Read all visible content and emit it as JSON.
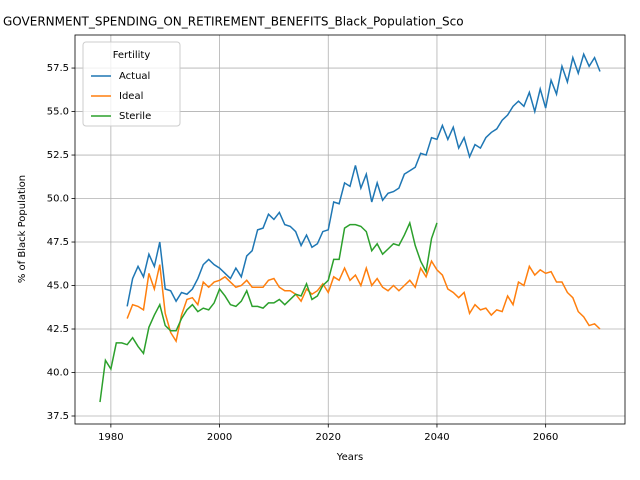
{
  "chart_data": {
    "type": "line",
    "title": "GOVERNMENT_SPENDING_ON_RETIREMENT_BENEFITS_Black_Population_Sco",
    "xlabel": "Years",
    "ylabel": "% of Black Population",
    "legend_title": "Fertility",
    "legend_loc": "upper left",
    "grid": true,
    "xlim": [
      1973.4,
      2074.6
    ],
    "ylim": [
      37.04,
      59.4
    ],
    "xticks": [
      1980,
      2000,
      2020,
      2040,
      2060
    ],
    "yticks": [
      37.5,
      {
        "value": 40,
        "label": "40.0"
      },
      42.5,
      {
        "value": 45,
        "label": "45.0"
      },
      47.5,
      {
        "value": 50,
        "label": "50.0"
      },
      52.5,
      {
        "value": 55,
        "label": "55.0"
      },
      57.5
    ],
    "x": [
      1978,
      1979,
      1980,
      1981,
      1982,
      1983,
      1984,
      1985,
      1986,
      1987,
      1988,
      1989,
      1990,
      1991,
      1992,
      1993,
      1994,
      1995,
      1996,
      1997,
      1998,
      1999,
      2000,
      2001,
      2002,
      2003,
      2004,
      2005,
      2006,
      2007,
      2008,
      2009,
      2010,
      2011,
      2012,
      2013,
      2014,
      2015,
      2016,
      2017,
      2018,
      2019,
      2020,
      2021,
      2022,
      2023,
      2024,
      2025,
      2026,
      2027,
      2028,
      2029,
      2030,
      2031,
      2032,
      2033,
      2034,
      2035,
      2036,
      2037,
      2038,
      2039,
      2040,
      2041,
      2042,
      2043,
      2044,
      2045,
      2046,
      2047,
      2048,
      2049,
      2050,
      2051,
      2052,
      2053,
      2054,
      2055,
      2056,
      2057,
      2058,
      2059,
      2060,
      2061,
      2062,
      2063,
      2064,
      2065,
      2066,
      2067,
      2068,
      2069,
      2070
    ],
    "series": [
      {
        "name": "Actual",
        "color": "#1f77b4",
        "values": [
          null,
          null,
          null,
          null,
          null,
          43.8,
          45.4,
          46.1,
          45.5,
          46.8,
          46.1,
          47.5,
          44.8,
          44.7,
          44.1,
          44.6,
          44.5,
          44.8,
          45.4,
          46.2,
          46.5,
          46.2,
          46.0,
          45.7,
          45.4,
          46.0,
          45.5,
          46.7,
          47.0,
          48.2,
          48.3,
          49.1,
          48.8,
          49.2,
          48.5,
          48.4,
          48.1,
          47.3,
          47.9,
          47.2,
          47.4,
          48.1,
          48.2,
          49.8,
          49.7,
          50.9,
          50.7,
          51.9,
          50.6,
          51.4,
          49.8,
          50.9,
          49.9,
          50.3,
          50.4,
          50.6,
          51.4,
          51.6,
          51.8,
          52.6,
          52.5,
          53.5,
          53.4,
          54.2,
          53.4,
          54.1,
          52.9,
          53.5,
          52.4,
          53.1,
          52.9,
          53.5,
          53.8,
          54.0,
          54.5,
          54.8,
          55.3,
          55.6,
          55.3,
          56.1,
          55.0,
          56.3,
          55.2,
          56.8,
          56.0,
          57.6,
          56.7,
          58.1,
          57.2,
          58.3,
          57.6,
          58.1,
          57.3
        ]
      },
      {
        "name": "Ideal",
        "color": "#ff7f0e",
        "values": [
          null,
          null,
          null,
          null,
          null,
          43.1,
          43.9,
          43.8,
          43.6,
          45.7,
          44.8,
          46.2,
          43.4,
          42.3,
          41.8,
          43.3,
          44.2,
          44.3,
          43.9,
          45.2,
          44.9,
          45.2,
          45.3,
          45.5,
          45.2,
          44.9,
          45.0,
          45.3,
          44.9,
          44.9,
          44.9,
          45.3,
          45.4,
          44.9,
          44.7,
          44.7,
          44.5,
          44.1,
          44.8,
          44.5,
          44.7,
          45.1,
          44.6,
          45.5,
          45.3,
          46.0,
          45.3,
          45.6,
          45.0,
          46.0,
          45.0,
          45.4,
          44.9,
          44.7,
          45.0,
          44.7,
          45.0,
          45.3,
          44.9,
          46.0,
          45.5,
          46.4,
          45.9,
          45.6,
          44.8,
          44.6,
          44.3,
          44.6,
          43.4,
          43.9,
          43.6,
          43.7,
          43.3,
          43.6,
          43.5,
          44.4,
          43.9,
          45.2,
          45.0,
          46.1,
          45.6,
          45.9,
          45.7,
          45.8,
          45.2,
          45.2,
          44.6,
          44.3,
          43.5,
          43.2,
          42.7,
          42.8,
          42.5
        ]
      },
      {
        "name": "Sterile",
        "color": "#2ca02c",
        "values": [
          38.3,
          40.7,
          40.2,
          41.7,
          41.7,
          41.6,
          42.0,
          41.5,
          41.1,
          42.6,
          43.3,
          43.9,
          42.7,
          42.4,
          42.4,
          43.1,
          43.6,
          43.9,
          43.5,
          43.7,
          43.6,
          44.0,
          44.8,
          44.4,
          43.9,
          43.8,
          44.1,
          44.7,
          43.8,
          43.8,
          43.7,
          44.0,
          44.0,
          44.2,
          43.9,
          44.2,
          44.5,
          44.4,
          45.1,
          44.2,
          44.4,
          45.0,
          45.3,
          46.5,
          46.5,
          48.3,
          48.5,
          48.5,
          48.4,
          48.1,
          47.0,
          47.4,
          46.8,
          47.1,
          47.4,
          47.3,
          47.9,
          48.6,
          47.3,
          46.4,
          45.8,
          47.7,
          48.6,
          null,
          null,
          null,
          null,
          null,
          null,
          null,
          null,
          null,
          null,
          null,
          null,
          null,
          null,
          null,
          null,
          null,
          null,
          null,
          null,
          null,
          null,
          null,
          null,
          null,
          null,
          null,
          null,
          null,
          null
        ]
      }
    ]
  }
}
